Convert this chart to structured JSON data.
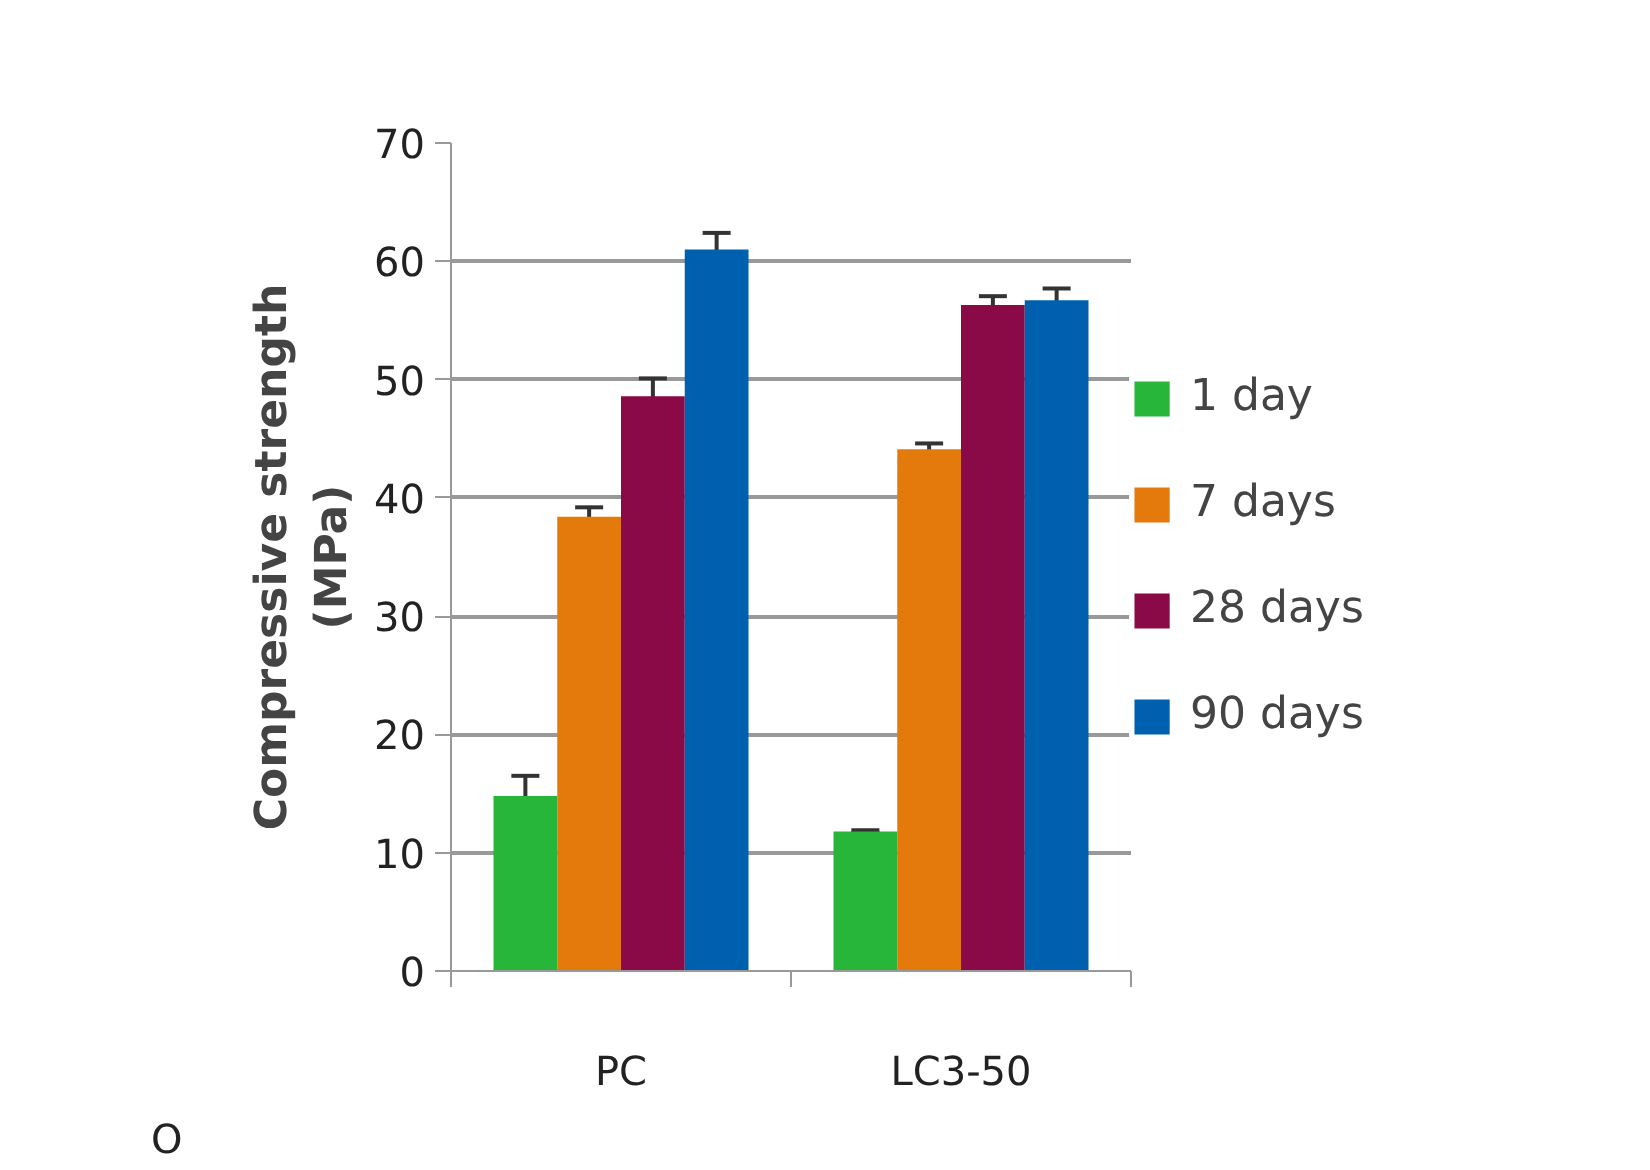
{
  "chart_data": {
    "type": "bar",
    "ylabel": "Compressive strength\n(MPa)",
    "categories": [
      "PC",
      "LC3-50"
    ],
    "series": [
      {
        "name": "1 day",
        "color": "#27b53a",
        "values": [
          14.8,
          11.8
        ],
        "errors": [
          1.7,
          0.1
        ]
      },
      {
        "name": "7 days",
        "color": "#e57a0c",
        "values": [
          38.4,
          44.1
        ],
        "errors": [
          0.8,
          0.5
        ]
      },
      {
        "name": "28 days",
        "color": "#8a0a48",
        "values": [
          48.6,
          56.3
        ],
        "errors": [
          1.5,
          0.75
        ]
      },
      {
        "name": "90 days",
        "color": "#0060b0",
        "values": [
          61.0,
          56.7
        ],
        "errors": [
          1.4,
          1.0
        ]
      }
    ],
    "ylim": [
      0,
      70
    ],
    "yticks": [
      0,
      10,
      20,
      30,
      40,
      50,
      60,
      70
    ],
    "grid": "y",
    "legend": "right",
    "annotations": [
      "O"
    ]
  }
}
